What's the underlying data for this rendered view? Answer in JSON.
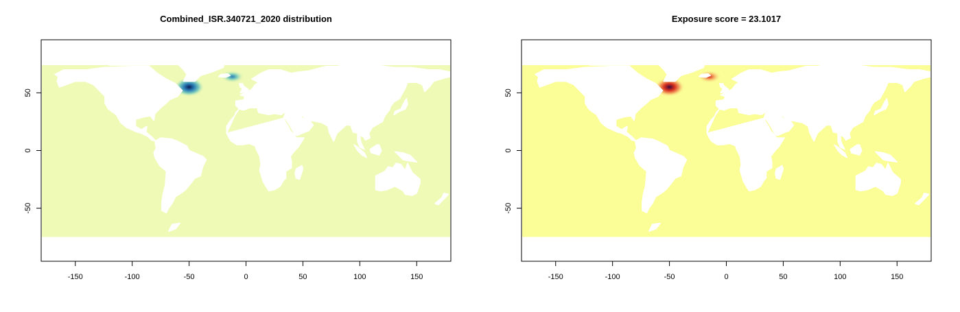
{
  "chart_data": [
    {
      "type": "heatmap",
      "title": "Combined_ISR.340721_2020 distribution",
      "xlabel": "",
      "ylabel": "",
      "xlim": [
        -180,
        180
      ],
      "ylim": [
        -96,
        96
      ],
      "x_ticks": [
        -150,
        -100,
        -50,
        0,
        50,
        100,
        150
      ],
      "y_ticks": [
        -50,
        0,
        50
      ],
      "x_tick_labels": [
        "-150",
        "-100",
        "-50",
        "0",
        "50",
        "100",
        "150"
      ],
      "y_tick_labels": [
        "-50",
        "0",
        "50"
      ],
      "ocean_extent_lat": [
        -75,
        74
      ],
      "background_color": "#eefab6",
      "colormap": [
        "#eefab6",
        "#7fcdbb",
        "#2c7fb8",
        "#081d58"
      ],
      "hotspots": [
        {
          "lon": -50,
          "lat": 55,
          "intensity": 1.0
        },
        {
          "lon": -12,
          "lat": 64,
          "intensity": 0.45
        }
      ],
      "grid": false,
      "legend": "none"
    },
    {
      "type": "heatmap",
      "title": "Exposure score = 23.1017",
      "xlabel": "",
      "ylabel": "",
      "xlim": [
        -180,
        180
      ],
      "ylim": [
        -96,
        96
      ],
      "x_ticks": [
        -150,
        -100,
        -50,
        0,
        50,
        100,
        150
      ],
      "y_ticks": [
        -50,
        0,
        50
      ],
      "x_tick_labels": [
        "-150",
        "-100",
        "-50",
        "0",
        "50",
        "100",
        "150"
      ],
      "y_tick_labels": [
        "-50",
        "0",
        "50"
      ],
      "ocean_extent_lat": [
        -75,
        74
      ],
      "background_color": "#fbfd97",
      "colormap": [
        "#fbfd97",
        "#f4a460",
        "#d7301f",
        "#3d0a3f"
      ],
      "hotspots": [
        {
          "lon": -50,
          "lat": 55,
          "intensity": 1.0
        },
        {
          "lon": -15,
          "lat": 64,
          "intensity": 0.6
        }
      ],
      "grid": false,
      "legend": "none"
    }
  ]
}
